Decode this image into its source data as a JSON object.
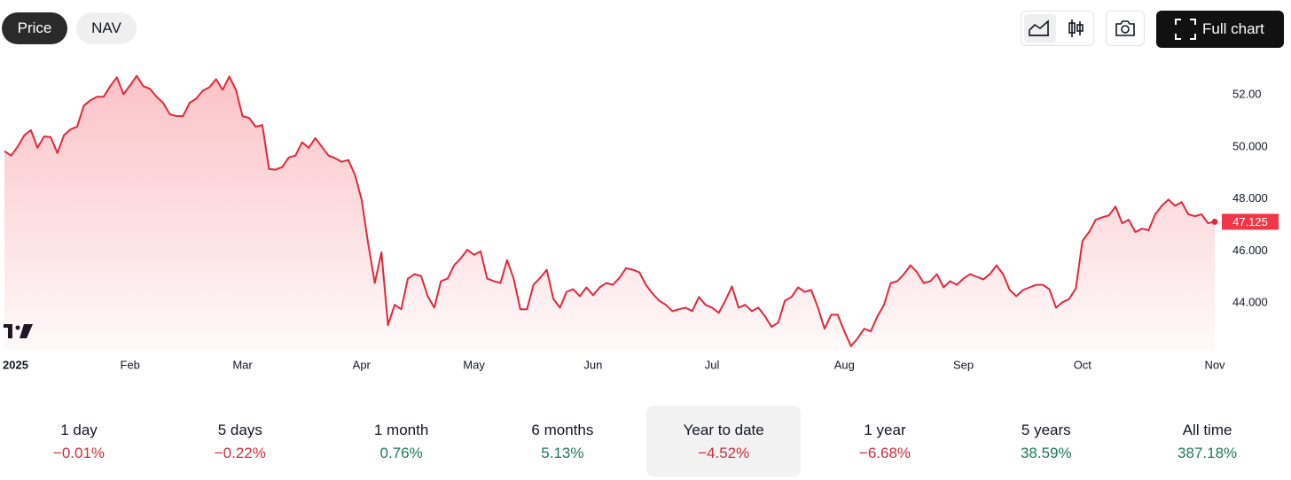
{
  "toolbar": {
    "tabs": [
      "Price",
      "NAV"
    ],
    "full_chart": "Full chart"
  },
  "chart_data": {
    "type": "area",
    "series": [
      {
        "name": "Price",
        "color": "#e0293a",
        "values": [
          49.84,
          49.67,
          50.01,
          50.45,
          50.65,
          49.97,
          50.41,
          50.38,
          49.77,
          50.45,
          50.68,
          50.78,
          51.59,
          51.8,
          51.93,
          51.93,
          52.34,
          52.68,
          52.03,
          52.37,
          52.74,
          52.34,
          52.24,
          51.93,
          51.7,
          51.26,
          51.19,
          51.19,
          51.7,
          51.86,
          52.17,
          52.3,
          52.61,
          52.2,
          52.71,
          52.2,
          51.19,
          51.12,
          50.78,
          50.85,
          49.16,
          49.13,
          49.23,
          49.6,
          49.67,
          50.18,
          49.97,
          50.34,
          50.01,
          49.67,
          49.57,
          49.43,
          49.5,
          48.93,
          47.98,
          46.29,
          44.77,
          45.95,
          43.15,
          43.93,
          43.76,
          44.94,
          45.11,
          45.04,
          44.26,
          43.82,
          44.84,
          44.94,
          45.45,
          45.72,
          46.05,
          45.85,
          45.99,
          44.94,
          44.84,
          44.77,
          45.65,
          44.94,
          43.76,
          43.76,
          44.7,
          44.97,
          45.28,
          44.16,
          43.82,
          44.43,
          44.53,
          44.26,
          44.6,
          44.3,
          44.6,
          44.77,
          44.7,
          44.97,
          45.34,
          45.28,
          45.18,
          44.7,
          44.36,
          44.09,
          43.93,
          43.69,
          43.76,
          43.82,
          43.69,
          44.23,
          43.93,
          43.82,
          43.62,
          44.09,
          44.64,
          43.82,
          43.93,
          43.69,
          43.82,
          43.49,
          43.08,
          43.25,
          44.09,
          44.23,
          44.6,
          44.43,
          44.5,
          43.82,
          43.01,
          43.55,
          43.55,
          42.91,
          42.34,
          42.64,
          43.01,
          42.91,
          43.49,
          43.93,
          44.77,
          44.84,
          45.11,
          45.45,
          45.18,
          44.77,
          44.84,
          45.11,
          44.6,
          44.84,
          44.7,
          44.94,
          45.11,
          45.01,
          44.91,
          45.11,
          45.45,
          45.11,
          44.5,
          44.26,
          44.5,
          44.6,
          44.7,
          44.7,
          44.53,
          43.82,
          44.03,
          44.16,
          44.57,
          46.39,
          46.73,
          47.2,
          47.3,
          47.37,
          47.71,
          47.07,
          47.2,
          46.73,
          46.86,
          46.8,
          47.41,
          47.74,
          47.98,
          47.74,
          47.88,
          47.41,
          47.34,
          47.41,
          47.07,
          47.125
        ]
      }
    ],
    "xlim": [
      0,
      183
    ],
    "xticks": [
      {
        "value": 0,
        "label": "2025"
      },
      {
        "value": 19,
        "label": "Feb"
      },
      {
        "value": 36,
        "label": "Mar"
      },
      {
        "value": 54,
        "label": "Apr"
      },
      {
        "value": 71,
        "label": "May"
      },
      {
        "value": 89,
        "label": "Jun"
      },
      {
        "value": 107,
        "label": "Jul"
      },
      {
        "value": 127,
        "label": "Aug"
      },
      {
        "value": 145,
        "label": "Sep"
      },
      {
        "value": 163,
        "label": "Oct"
      },
      {
        "value": 183,
        "label": "Nov"
      }
    ],
    "ylim": [
      42.2,
      53.1
    ],
    "yticks": [
      {
        "value": 52,
        "label": "52.00"
      },
      {
        "value": 50,
        "label": "50.000"
      },
      {
        "value": 48,
        "label": "48.000"
      },
      {
        "value": 46,
        "label": "46.000"
      },
      {
        "value": 44,
        "label": "44.000"
      }
    ],
    "grid": false
  },
  "periods": [
    {
      "label": "1 day",
      "change": "−0.01%"
    },
    {
      "label": "5 days",
      "change": "−0.22%"
    },
    {
      "label": "1 month",
      "change": "0.76%"
    },
    {
      "label": "6 months",
      "change": "5.13%"
    },
    {
      "label": "Year to date",
      "change": "−4.52%",
      "selected": true
    },
    {
      "label": "1 year",
      "change": "−6.68%"
    },
    {
      "label": "5 years",
      "change": "38.59%"
    },
    {
      "label": "All time",
      "change": "387.18%"
    }
  ]
}
